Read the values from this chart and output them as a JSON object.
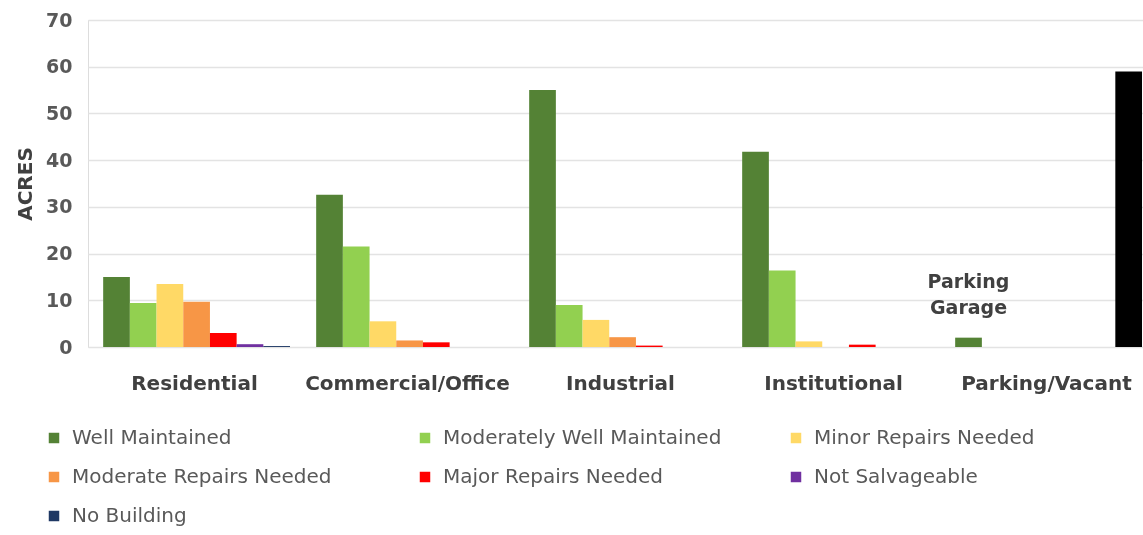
{
  "chart_data": {
    "type": "bar",
    "ylabel": "ACRES",
    "categories": [
      "Residential",
      "Commercial/Office",
      "Industrial",
      "Institutional",
      "Parking/Vacant"
    ],
    "series": [
      {
        "name": "Well Maintained",
        "color": "#548235",
        "values": [
          15,
          32.6,
          55,
          41.8,
          2
        ]
      },
      {
        "name": "Moderately Well Maintained",
        "color": "#92d050",
        "values": [
          9.4,
          21.5,
          9,
          16.4,
          null
        ]
      },
      {
        "name": "Minor Repairs Needed",
        "color": "#ffd966",
        "values": [
          13.5,
          5.5,
          5.8,
          1.2,
          null
        ]
      },
      {
        "name": "Moderate Repairs Needed",
        "color": "#f79646",
        "values": [
          9.7,
          1.4,
          2.1,
          null,
          null
        ]
      },
      {
        "name": "Major Repairs Needed",
        "color": "#ff0000",
        "values": [
          3,
          1,
          0.3,
          0.5,
          null
        ]
      },
      {
        "name": "Not Salvageable",
        "color": "#7030a0",
        "values": [
          0.6,
          null,
          null,
          null,
          null
        ]
      },
      {
        "name": "No Building",
        "color": "#1f3864",
        "values": [
          0.2,
          null,
          null,
          null,
          59
        ],
        "colors": [
          "#1f3864",
          "#1f3864",
          "#1f3864",
          "#1f3864",
          "#000000"
        ]
      }
    ],
    "ylim": [
      0,
      70
    ],
    "yticks": [
      0,
      10,
      20,
      30,
      40,
      50,
      60,
      70
    ],
    "grid": "y",
    "legend": "bottom",
    "annotations": [
      "Parking Garage"
    ]
  }
}
